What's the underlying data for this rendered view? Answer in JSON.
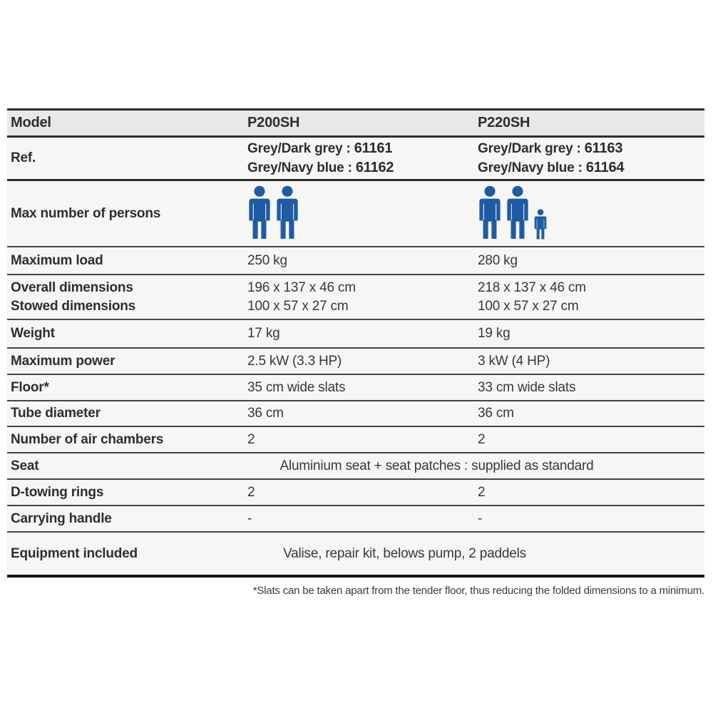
{
  "theme": {
    "person_icon_color": "#1d5ba6",
    "row_bg": "#f6f6f4",
    "header_row_bg": "#e8e8e6",
    "rule_color": "#2b2b2b"
  },
  "table": {
    "header": {
      "label": "Model",
      "col1": "P200SH",
      "col2": "P220SH"
    },
    "ref": {
      "label": "Ref.",
      "col1": [
        {
          "text": "Grey/Dark grey : ",
          "code": "61161"
        },
        {
          "text": "Grey/Navy blue : ",
          "code": "61162"
        }
      ],
      "col2": [
        {
          "text": "Grey/Dark grey : ",
          "code": "61163"
        },
        {
          "text": "Grey/Navy blue : ",
          "code": "61164"
        }
      ]
    },
    "persons": {
      "label": "Max number of persons",
      "col1": {
        "adults": 2,
        "children": 0
      },
      "col2": {
        "adults": 2,
        "children": 1
      }
    },
    "rows": [
      {
        "label": "Maximum load",
        "col1": "250 kg",
        "col2": "280 kg"
      },
      {
        "label": "Overall dimensions",
        "label2": "Stowed dimensions",
        "col1": "196 x 137 x 46 cm",
        "col1b": "100 x 57 x 27 cm",
        "col2": "218 x 137 x 46 cm",
        "col2b": "100 x 57 x 27 cm"
      },
      {
        "label": "Weight",
        "col1": "17 kg",
        "col2": "19 kg"
      },
      {
        "label": "Maximum power",
        "col1": "2.5 kW (3.3 HP)",
        "col2": "3 kW (4 HP)"
      },
      {
        "label": "Floor*",
        "col1": "35 cm wide slats",
        "col2": "33 cm wide slats"
      },
      {
        "label": "Tube diameter",
        "col1": "36 cm",
        "col2": "36 cm"
      },
      {
        "label": "Number of air chambers",
        "col1": "2",
        "col2": "2"
      },
      {
        "label": "Seat",
        "span": "Aluminium seat + seat patches : supplied as standard"
      },
      {
        "label": "D-towing rings",
        "col1": "2",
        "col2": "2"
      },
      {
        "label": "Carrying handle",
        "col1": "-",
        "col2": "-"
      },
      {
        "label": "Equipment included",
        "span": "Valise, repair kit, belows pump, 2 paddels"
      }
    ],
    "footnote": "*Slats can be taken apart from the tender floor, thus reducing the folded dimensions to a minimum."
  }
}
